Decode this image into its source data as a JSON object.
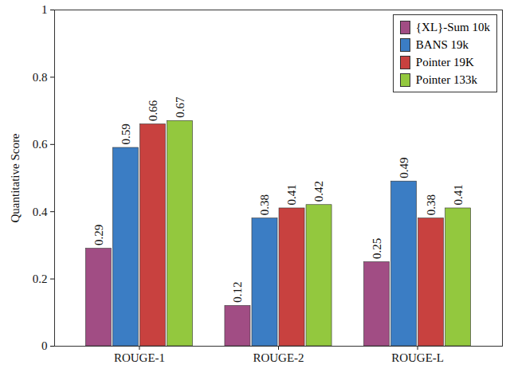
{
  "chart_data": {
    "type": "bar",
    "y_label": "Quantitative Score",
    "categories": [
      "ROUGE-1",
      "ROUGE-2",
      "ROUGE-L"
    ],
    "series": [
      {
        "name": "{XL}-Sum 10k",
        "color": "#a14d84",
        "values": [
          0.29,
          0.12,
          0.25
        ]
      },
      {
        "name": "BANS 19k",
        "color": "#3b7dc4",
        "values": [
          0.59,
          0.38,
          0.49
        ]
      },
      {
        "name": "Pointer 19K",
        "color": "#c8413f",
        "values": [
          0.66,
          0.41,
          0.38
        ]
      },
      {
        "name": "Pointer 133k",
        "color": "#93c83e",
        "values": [
          0.67,
          0.42,
          0.41
        ]
      }
    ],
    "ylim": [
      0,
      1
    ],
    "yticks": [
      0,
      0.2,
      0.4,
      0.6,
      0.8,
      1
    ],
    "grid": false,
    "legend": "top-right",
    "data_labels": true
  }
}
